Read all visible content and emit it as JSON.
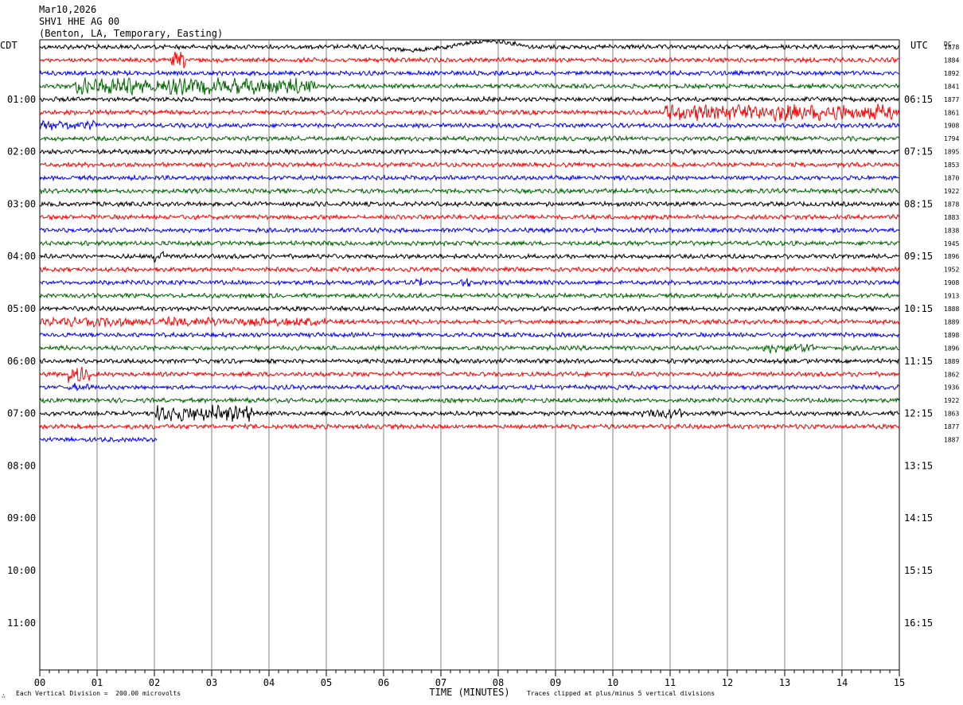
{
  "header": {
    "date": "Mar10,2026",
    "station": "SHV1 HHE AG 00",
    "location": "(Benton, LA, Temporary, Easting)"
  },
  "left_axis_title": "CDT",
  "right_axis_title": "UTC",
  "dc_title": "DC",
  "footer": {
    "scale": "Each Vertical Division =  200.00 microvolts",
    "xlabel": "TIME (MINUTES)",
    "clip_note": "Traces clipped at plus/minus 5 vertical divisions",
    "corner_mark": "∴"
  },
  "colors": {
    "black": "#000000",
    "red": "#ff0000",
    "blue": "#0000ff",
    "green": "#006400",
    "grid": "#808080"
  },
  "chart_data": {
    "type": "line",
    "title": "SHV1 HHE AG 00",
    "xlabel": "TIME (MINUTES)",
    "xlim": [
      0,
      15
    ],
    "x_ticks": [
      "00",
      "01",
      "02",
      "03",
      "04",
      "05",
      "06",
      "07",
      "08",
      "09",
      "10",
      "11",
      "12",
      "13",
      "14",
      "15"
    ],
    "left_time_labels": [
      "01:00",
      "02:00",
      "03:00",
      "04:00",
      "05:00",
      "06:00",
      "07:00",
      "08:00",
      "09:00",
      "10:00",
      "11:00"
    ],
    "right_time_labels": [
      "06:15",
      "07:15",
      "08:15",
      "09:15",
      "10:15",
      "11:15",
      "12:15",
      "13:15",
      "14:15",
      "15:15",
      "16:15"
    ],
    "trace_color_cycle": [
      "black",
      "red",
      "blue",
      "green"
    ],
    "trace_count": 31,
    "last_trace_minutes": 2.05,
    "dc_values": [
      "1878",
      "1884",
      "1892",
      "1841",
      "1877",
      "1861",
      "1908",
      "1794",
      "1895",
      "1853",
      "1870",
      "1922",
      "1878",
      "1883",
      "1838",
      "1945",
      "1896",
      "1952",
      "1908",
      "1913",
      "1888",
      "1889",
      "1898",
      "1896",
      "1889",
      "1862",
      "1936",
      "1922",
      "1863",
      "1877",
      "1887"
    ],
    "events": [
      {
        "trace": 0,
        "minute_start": 5.9,
        "minute_end": 8.6,
        "type": "long-period swell"
      },
      {
        "trace": 1,
        "minute_start": 2.3,
        "minute_end": 2.55,
        "amplitude": "high"
      },
      {
        "trace": 3,
        "minute_start": 0.6,
        "minute_end": 4.8,
        "amplitude": "high"
      },
      {
        "trace": 5,
        "minute_start": 10.9,
        "minute_end": 15.0,
        "amplitude": "high"
      },
      {
        "trace": 6,
        "minute_start": 0.0,
        "minute_end": 1.0,
        "amplitude": "medium"
      },
      {
        "trace": 16,
        "minute_start": 2.0,
        "minute_end": 2.2,
        "amplitude": "high"
      },
      {
        "trace": 18,
        "minute_start": 6.55,
        "minute_end": 6.7,
        "amplitude": "medium"
      },
      {
        "trace": 18,
        "minute_start": 7.35,
        "minute_end": 7.5,
        "amplitude": "medium"
      },
      {
        "trace": 21,
        "minute_start": 0.0,
        "minute_end": 5.0,
        "amplitude": "medium"
      },
      {
        "trace": 23,
        "minute_start": 12.6,
        "minute_end": 13.5,
        "amplitude": "medium"
      },
      {
        "trace": 25,
        "minute_start": 0.5,
        "minute_end": 0.9,
        "amplitude": "high"
      },
      {
        "trace": 26,
        "minute_start": 0.5,
        "minute_end": 0.9,
        "amplitude": "medium"
      },
      {
        "trace": 28,
        "minute_start": 2.0,
        "minute_end": 3.7,
        "amplitude": "high"
      },
      {
        "trace": 28,
        "minute_start": 10.5,
        "minute_end": 11.2,
        "amplitude": "medium"
      }
    ]
  }
}
